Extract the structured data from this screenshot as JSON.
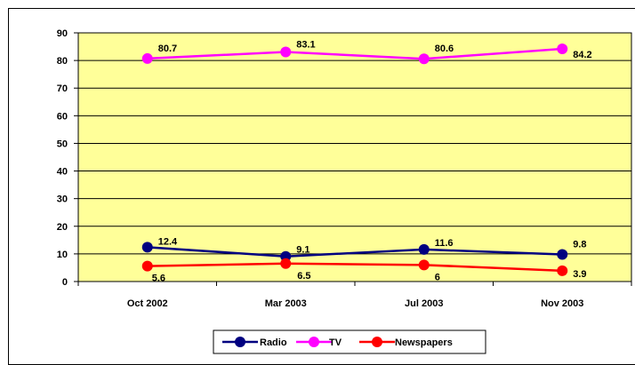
{
  "chart_data": {
    "type": "line",
    "title": "",
    "xlabel": "",
    "ylabel": "",
    "categories": [
      "Oct 2002",
      "Mar 2003",
      "Jul 2003",
      "Nov 2003"
    ],
    "ylim": [
      0,
      90
    ],
    "yticks": [
      0,
      10,
      20,
      30,
      40,
      50,
      60,
      70,
      80,
      90
    ],
    "grid": true,
    "legend_position": "bottom",
    "plot_background": "#ffff99",
    "series": [
      {
        "name": "Radio",
        "color": "#000080",
        "values": [
          12.4,
          9.1,
          11.6,
          9.8
        ],
        "labels": [
          "12.4",
          "9.1",
          "11.6",
          "9.8"
        ]
      },
      {
        "name": "TV",
        "color": "#ff00ff",
        "values": [
          80.7,
          83.1,
          80.6,
          84.2
        ],
        "labels": [
          "80.7",
          "83.1",
          "80.6",
          "84.2"
        ]
      },
      {
        "name": "Newspapers",
        "color": "#ff0000",
        "values": [
          5.6,
          6.5,
          6,
          3.9
        ],
        "labels": [
          "5.6",
          "6.5",
          "6",
          "3.9"
        ]
      }
    ]
  }
}
